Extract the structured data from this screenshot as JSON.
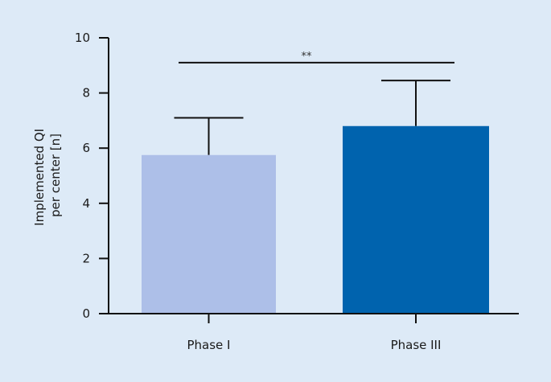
{
  "chart_data": {
    "type": "bar",
    "title": "",
    "xlabel": "",
    "ylabel": [
      "Implemented QI",
      "per center [n]"
    ],
    "ylim": [
      0,
      10
    ],
    "yticks": [
      0,
      2,
      4,
      6,
      8,
      10
    ],
    "categories": [
      "Phase I",
      "Phase III"
    ],
    "values": [
      5.75,
      6.8
    ],
    "error_upper": [
      7.1,
      8.45
    ],
    "colors": [
      "#adbfe8",
      "#0063ae"
    ],
    "significance": {
      "between": [
        "Phase I",
        "Phase III"
      ],
      "label": "**",
      "y": 9.1
    },
    "grid": false,
    "legend": null
  },
  "background": "#ddeaf7"
}
